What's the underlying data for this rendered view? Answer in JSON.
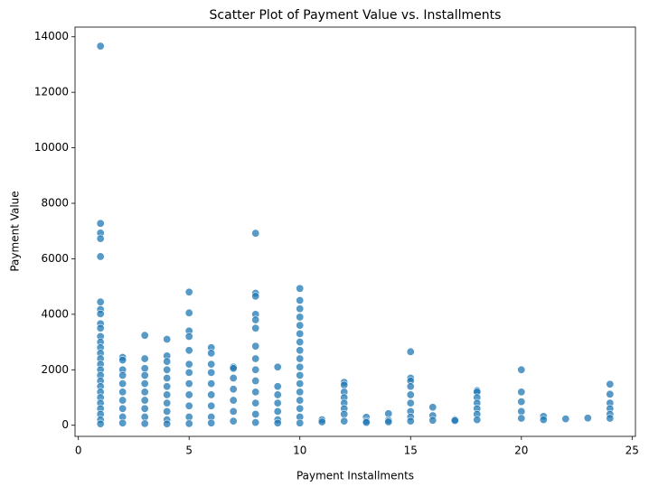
{
  "chart_data": {
    "type": "scatter",
    "title": "Scatter Plot of Payment Value vs. Installments",
    "x_label": "Payment Installments",
    "y_label": "Payment Value",
    "color": "#1f77b4",
    "grid": false,
    "xlim": [
      -0.15,
      25.15
    ],
    "ylim": [
      -400,
      14350
    ],
    "xticks": [
      0,
      5,
      10,
      15,
      20,
      25
    ],
    "yticks": [
      0,
      2000,
      4000,
      6000,
      8000,
      10000,
      12000,
      14000
    ],
    "x": [
      1,
      1,
      1,
      1,
      1,
      1,
      1,
      1,
      1,
      1,
      1,
      1,
      1,
      1,
      1,
      1,
      1,
      1,
      1,
      1,
      1,
      1,
      1,
      1,
      1,
      1,
      1,
      2,
      2,
      2,
      2,
      2,
      2,
      2,
      2,
      2,
      2,
      3,
      3,
      3,
      3,
      3,
      3,
      3,
      3,
      3,
      3,
      4,
      4,
      4,
      4,
      4,
      4,
      4,
      4,
      4,
      4,
      4,
      5,
      5,
      5,
      5,
      5,
      5,
      5,
      5,
      5,
      5,
      5,
      5,
      6,
      6,
      6,
      6,
      6,
      6,
      6,
      6,
      6,
      7,
      7,
      7,
      7,
      7,
      7,
      7,
      8,
      8,
      8,
      8,
      8,
      8,
      8,
      8,
      8,
      8,
      8,
      8,
      8,
      8,
      9,
      9,
      9,
      9,
      9,
      9,
      9,
      10,
      10,
      10,
      10,
      10,
      10,
      10,
      10,
      10,
      10,
      10,
      10,
      10,
      10,
      10,
      10,
      10,
      11,
      11,
      12,
      12,
      12,
      12,
      12,
      12,
      12,
      12,
      13,
      13,
      13,
      14,
      14,
      14,
      15,
      15,
      15,
      15,
      15,
      15,
      15,
      15,
      15,
      16,
      16,
      16,
      17,
      17,
      18,
      18,
      18,
      18,
      18,
      18,
      18,
      20,
      20,
      20,
      20,
      20,
      21,
      21,
      22,
      23,
      24,
      24,
      24,
      24,
      24,
      24
    ],
    "y": [
      13664,
      7274,
      6929,
      6726,
      6081,
      4445,
      4175,
      4016,
      3660,
      3500,
      3200,
      3000,
      2800,
      2600,
      2400,
      2200,
      2000,
      1800,
      1600,
      1400,
      1200,
      1000,
      800,
      600,
      400,
      200,
      50,
      2450,
      2350,
      2000,
      1800,
      1500,
      1200,
      900,
      600,
      300,
      80,
      3240,
      2400,
      2050,
      1800,
      1500,
      1200,
      900,
      600,
      300,
      60,
      3100,
      2500,
      2300,
      2000,
      1700,
      1400,
      1100,
      800,
      500,
      200,
      50,
      4800,
      4050,
      3400,
      3200,
      2700,
      2200,
      1900,
      1500,
      1100,
      700,
      300,
      60,
      2800,
      2600,
      2200,
      1900,
      1500,
      1100,
      700,
      300,
      80,
      2100,
      2050,
      1700,
      1300,
      900,
      500,
      150,
      6920,
      4760,
      4650,
      4000,
      3800,
      3500,
      2850,
      2400,
      2000,
      1600,
      1200,
      800,
      400,
      100,
      2100,
      1400,
      1100,
      800,
      500,
      200,
      80,
      4930,
      4500,
      4200,
      3900,
      3600,
      3300,
      3000,
      2700,
      2400,
      2100,
      1800,
      1500,
      1200,
      900,
      600,
      300,
      80,
      200,
      120,
      1550,
      1450,
      1200,
      1000,
      800,
      600,
      400,
      150,
      290,
      150,
      100,
      420,
      180,
      120,
      2650,
      1700,
      1600,
      1400,
      1100,
      800,
      500,
      300,
      150,
      650,
      350,
      180,
      200,
      170,
      1250,
      1200,
      1000,
      800,
      600,
      400,
      200,
      2000,
      1200,
      850,
      500,
      250,
      320,
      200,
      230,
      260,
      1480,
      1120,
      800,
      600,
      400,
      250
    ]
  }
}
